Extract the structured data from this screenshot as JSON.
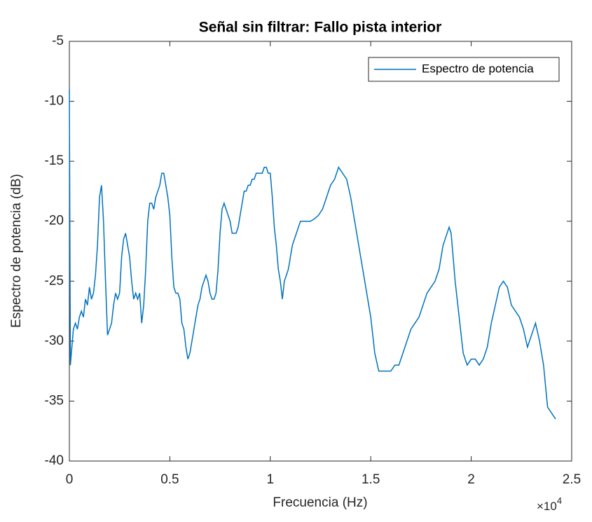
{
  "chart_data": {
    "type": "line",
    "title": "Señal sin filtrar: Fallo pista interior",
    "x_label": "Frecuencia (Hz)",
    "y_label": "Espectro de potencia (dB)",
    "x_scale_base": "×10",
    "x_scale_exponent": "4",
    "xlim": [
      0,
      2.5
    ],
    "xticks": [
      0,
      0.5,
      1,
      1.5,
      2,
      2.5
    ],
    "ylim": [
      -40,
      -5
    ],
    "yticks": [
      -40,
      -35,
      -30,
      -25,
      -20,
      -15,
      -10,
      -5
    ],
    "grid": false,
    "legend": "top-right",
    "x": [
      0,
      0.005,
      0.01,
      0.02,
      0.03,
      0.04,
      0.05,
      0.06,
      0.07,
      0.08,
      0.09,
      0.1,
      0.11,
      0.12,
      0.13,
      0.14,
      0.15,
      0.16,
      0.17,
      0.18,
      0.19,
      0.2,
      0.21,
      0.22,
      0.23,
      0.24,
      0.25,
      0.26,
      0.27,
      0.28,
      0.29,
      0.3,
      0.31,
      0.32,
      0.33,
      0.34,
      0.35,
      0.36,
      0.37,
      0.38,
      0.39,
      0.4,
      0.41,
      0.42,
      0.43,
      0.44,
      0.45,
      0.46,
      0.47,
      0.48,
      0.49,
      0.5,
      0.51,
      0.52,
      0.53,
      0.54,
      0.55,
      0.56,
      0.57,
      0.58,
      0.59,
      0.6,
      0.61,
      0.62,
      0.63,
      0.64,
      0.65,
      0.66,
      0.67,
      0.68,
      0.69,
      0.7,
      0.71,
      0.72,
      0.73,
      0.74,
      0.75,
      0.76,
      0.77,
      0.78,
      0.79,
      0.8,
      0.81,
      0.82,
      0.83,
      0.84,
      0.85,
      0.86,
      0.87,
      0.88,
      0.89,
      0.9,
      0.91,
      0.92,
      0.93,
      0.94,
      0.95,
      0.96,
      0.97,
      0.98,
      0.99,
      1.0,
      1.01,
      1.02,
      1.03,
      1.04,
      1.05,
      1.06,
      1.07,
      1.08,
      1.09,
      1.1,
      1.11,
      1.12,
      1.13,
      1.14,
      1.15,
      1.16,
      1.18,
      1.2,
      1.22,
      1.24,
      1.26,
      1.28,
      1.3,
      1.32,
      1.34,
      1.36,
      1.38,
      1.4,
      1.42,
      1.44,
      1.46,
      1.48,
      1.5,
      1.52,
      1.54,
      1.56,
      1.58,
      1.6,
      1.62,
      1.64,
      1.66,
      1.68,
      1.7,
      1.72,
      1.74,
      1.76,
      1.78,
      1.8,
      1.82,
      1.84,
      1.86,
      1.88,
      1.89,
      1.9,
      1.91,
      1.92,
      1.94,
      1.96,
      1.98,
      2.0,
      2.02,
      2.04,
      2.06,
      2.08,
      2.1,
      2.12,
      2.14,
      2.16,
      2.18,
      2.2,
      2.22,
      2.24,
      2.26,
      2.28,
      2.3,
      2.32,
      2.34,
      2.36,
      2.38,
      2.4,
      2.42
    ],
    "series": [
      {
        "name": "Espectro de potencia",
        "color": "#0072bd",
        "values": [
          -9,
          -32,
          -31,
          -29,
          -28.5,
          -29,
          -28,
          -27.5,
          -28,
          -26.5,
          -27,
          -25.5,
          -26.5,
          -26,
          -24.5,
          -22,
          -18,
          -17,
          -20,
          -25,
          -29.5,
          -29,
          -28.5,
          -27,
          -26,
          -26.5,
          -26,
          -23,
          -21.5,
          -21,
          -22,
          -23,
          -25,
          -26.5,
          -26,
          -26.5,
          -26,
          -28.5,
          -27,
          -24,
          -20,
          -18.5,
          -18.5,
          -19,
          -18,
          -17.5,
          -17,
          -16,
          -16,
          -17,
          -18,
          -19.5,
          -23,
          -25.5,
          -26,
          -26,
          -26.5,
          -28.5,
          -29,
          -30.5,
          -31.5,
          -31,
          -30,
          -29,
          -28,
          -27,
          -26.5,
          -25.5,
          -25,
          -24.5,
          -25,
          -26,
          -26.5,
          -26.5,
          -26,
          -24,
          -21,
          -19,
          -18.5,
          -19,
          -19.5,
          -20,
          -21,
          -21,
          -21,
          -20.5,
          -19.5,
          -18.5,
          -17.5,
          -17.5,
          -17,
          -17,
          -16.5,
          -16.5,
          -16,
          -16,
          -16,
          -16,
          -15.5,
          -15.5,
          -16,
          -16,
          -18,
          -20.5,
          -22,
          -24,
          -25,
          -26.5,
          -25,
          -24.5,
          -24,
          -23,
          -22,
          -21.5,
          -21,
          -20.5,
          -20,
          -20,
          -20,
          -20,
          -19.8,
          -19.5,
          -19,
          -18,
          -17,
          -16.5,
          -15.5,
          -16,
          -16.5,
          -18,
          -20,
          -22,
          -24,
          -26,
          -28,
          -31,
          -32.5,
          -32.5,
          -32.5,
          -32.5,
          -32,
          -32,
          -31,
          -30,
          -29,
          -28.5,
          -28,
          -27,
          -26,
          -25.5,
          -25,
          -24,
          -22,
          -21,
          -20.5,
          -21,
          -23,
          -25,
          -28,
          -31,
          -32,
          -31.5,
          -31.5,
          -32,
          -31.5,
          -30.5,
          -28.5,
          -27,
          -25.5,
          -25,
          -25.5,
          -27,
          -27.5,
          -28,
          -29,
          -30.5,
          -29.5,
          -28.5,
          -30,
          -32,
          -35.5,
          -36,
          -36.5
        ]
      }
    ]
  }
}
